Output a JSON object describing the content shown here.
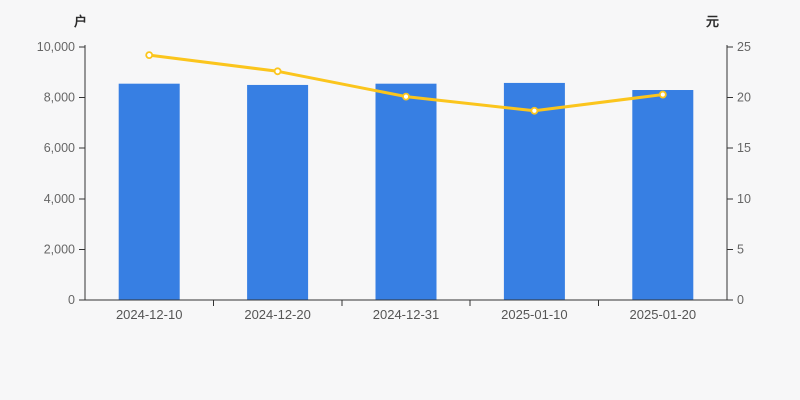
{
  "page": {
    "background": "#f7f7f8",
    "axis_line_color": "#333333",
    "tick_label_color": "#666666",
    "date_label_color": "#555555"
  },
  "chart_data": {
    "type": "bar",
    "subtype": "bar-with-line-dual-axis",
    "categories": [
      "2024-12-10",
      "2024-12-20",
      "2024-12-31",
      "2025-01-10",
      "2025-01-20"
    ],
    "series": [
      {
        "type": "bar",
        "y_axis": "left",
        "color": "#377fe3",
        "values": [
          8550,
          8500,
          8550,
          8580,
          8300
        ]
      },
      {
        "type": "line",
        "y_axis": "right",
        "color": "#fbc51d",
        "marker": "hollow-circle",
        "marker_fill": "#ffffff",
        "values": [
          24.2,
          22.6,
          20.1,
          18.7,
          20.3
        ]
      }
    ],
    "left_axis": {
      "name": "户",
      "min": 0,
      "max": 10000,
      "tick_step": 2000,
      "tick_labels": [
        "0",
        "2,000",
        "4,000",
        "6,000",
        "8,000",
        "10,000"
      ]
    },
    "right_axis": {
      "name": "元",
      "min": 0,
      "max": 25,
      "tick_step": 5,
      "tick_labels": [
        "0",
        "5",
        "10",
        "15",
        "20",
        "25"
      ]
    },
    "grid": false,
    "legend": false,
    "title": ""
  }
}
